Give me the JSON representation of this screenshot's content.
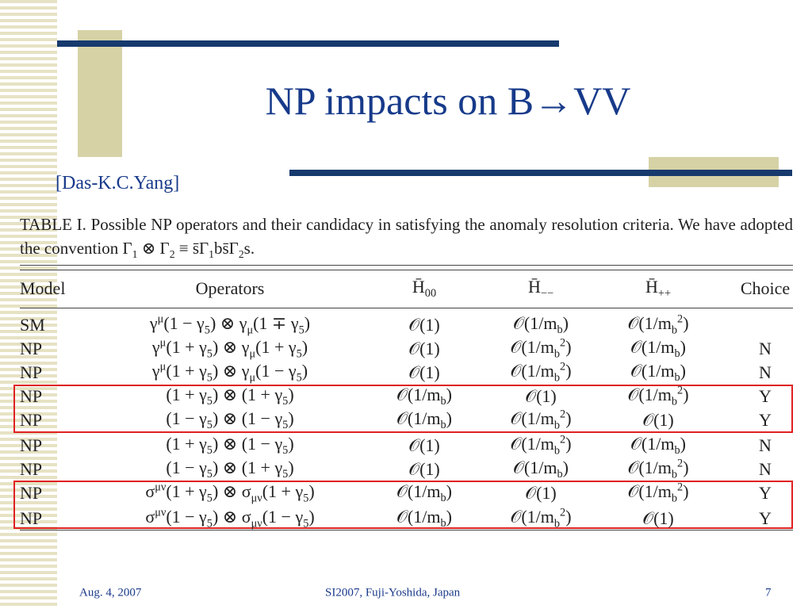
{
  "title": "NP impacts on B→VV",
  "citation": "[Das-K.C.Yang]",
  "caption": "TABLE I. Possible NP operators and their candidacy in satisfying the anomaly resolution criteria. We have adopted the convention Γ_1 ⊗ Γ_2 ≡ s̄Γ_1bs̄Γ_2s.",
  "table": {
    "header": [
      "Model",
      "Operators",
      "H̄_{00}",
      "H̄_{−−}",
      "H̄_{++}",
      "Choice"
    ],
    "rows": [
      [
        "SM",
        "γ^μ(1 − γ_5) ⊗ γ_μ(1 ∓ γ_5)",
        "𝒪(1)",
        "𝒪(1/m_b)",
        "𝒪(1/m_b^2)",
        null
      ],
      [
        "NP",
        "γ^μ(1 + γ_5) ⊗ γ_μ(1 + γ_5)",
        "𝒪(1)",
        "𝒪(1/m_b^2)",
        "𝒪(1/m_b)",
        "N"
      ],
      [
        "NP",
        "γ^μ(1 + γ_5) ⊗ γ_μ(1 − γ_5)",
        "𝒪(1)",
        "𝒪(1/m_b^2)",
        "𝒪(1/m_b)",
        "N"
      ],
      [
        "NP",
        "(1 + γ_5) ⊗ (1 + γ_5)",
        "𝒪(1/m_b)",
        "𝒪(1)",
        "𝒪(1/m_b^2)",
        "Y"
      ],
      [
        "NP",
        "(1 − γ_5) ⊗ (1 − γ_5)",
        "𝒪(1/m_b)",
        "𝒪(1/m_b^2)",
        "𝒪(1)",
        "Y"
      ],
      [
        "NP",
        "(1 + γ_5) ⊗ (1 − γ_5)",
        "𝒪(1)",
        "𝒪(1/m_b^2)",
        "𝒪(1/m_b)",
        "N"
      ],
      [
        "NP",
        "(1 − γ_5) ⊗ (1 + γ_5)",
        "𝒪(1)",
        "𝒪(1/m_b)",
        "𝒪(1/m_b^2)",
        "N"
      ],
      [
        "NP",
        "σ^{μν}(1 + γ_5) ⊗ σ_{μν}(1 + γ_5)",
        "𝒪(1/m_b)",
        "𝒪(1)",
        "𝒪(1/m_b^2)",
        "Y"
      ],
      [
        "NP",
        "σ^{μν}(1 − γ_5) ⊗ σ_{μν}(1 − γ_5)",
        "𝒪(1/m_b)",
        "𝒪(1/m_b^2)",
        "𝒪(1)",
        "Y"
      ]
    ]
  },
  "footer": {
    "date": "Aug. 4, 2007",
    "venue": "SI2007, Fuji-Yoshida, Japan",
    "page": "7"
  }
}
